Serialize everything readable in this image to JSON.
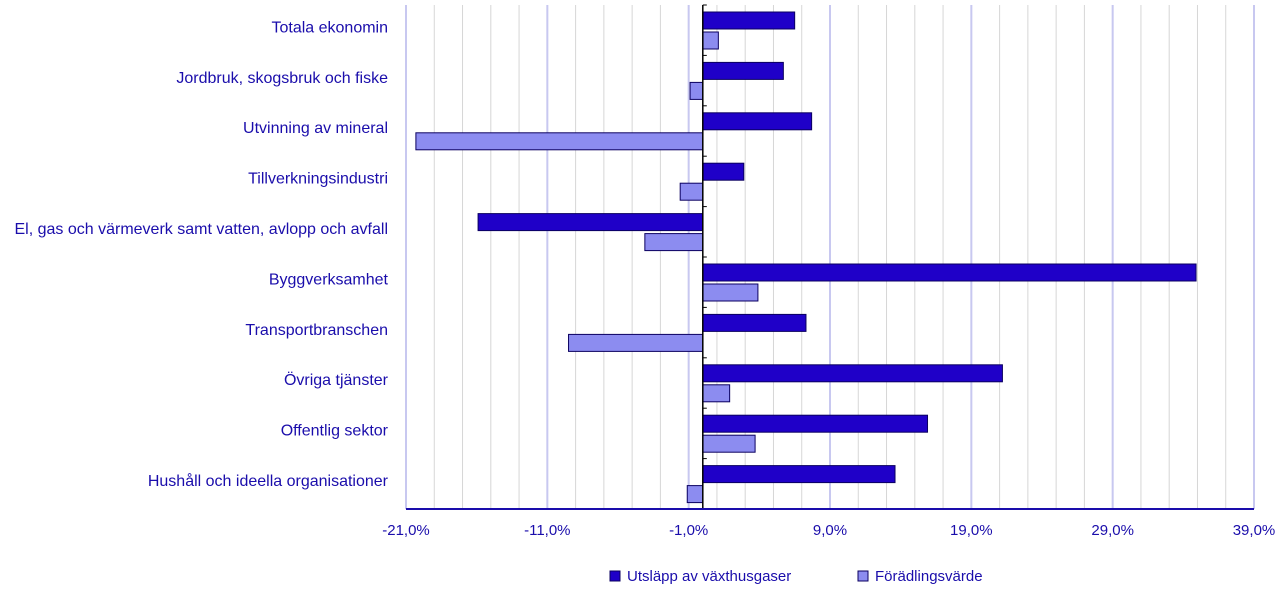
{
  "chart_data": {
    "type": "bar",
    "orientation": "horizontal",
    "categories": [
      "Totala ekonomin",
      "Jordbruk, skogsbruk och fiske",
      "Utvinning av mineral",
      "Tillverkningsindustri",
      "El, gas och värmeverk samt vatten, avlopp och avfall",
      "Byggverksamhet",
      "Transportbranschen",
      "Övriga tjänster",
      "Offentlig sektor",
      "Hushåll och ideella organisationer"
    ],
    "series": [
      {
        "name": "Utsläpp av växthusgaser",
        "color": "#1f00c8",
        "values": [
          6.5,
          5.7,
          7.7,
          2.9,
          -15.9,
          34.9,
          7.3,
          21.2,
          15.9,
          13.6
        ]
      },
      {
        "name": "Förädlingsvärde",
        "color": "#8c8cf0",
        "values": [
          1.1,
          -0.9,
          -20.3,
          -1.6,
          -4.1,
          3.9,
          -9.5,
          1.9,
          3.7,
          -1.1
        ]
      }
    ],
    "xlim": [
      -21.0,
      39.0
    ],
    "xticks": [
      -21.0,
      -11.0,
      -1.0,
      9.0,
      19.0,
      29.0,
      39.0
    ],
    "xtick_labels": [
      "-21,0%",
      "-11,0%",
      "-1,0%",
      "9,0%",
      "19,0%",
      "29,0%",
      "39,0%"
    ],
    "title": "",
    "xlabel": "",
    "ylabel": "",
    "grid": "vertical",
    "legend_position": "bottom"
  }
}
